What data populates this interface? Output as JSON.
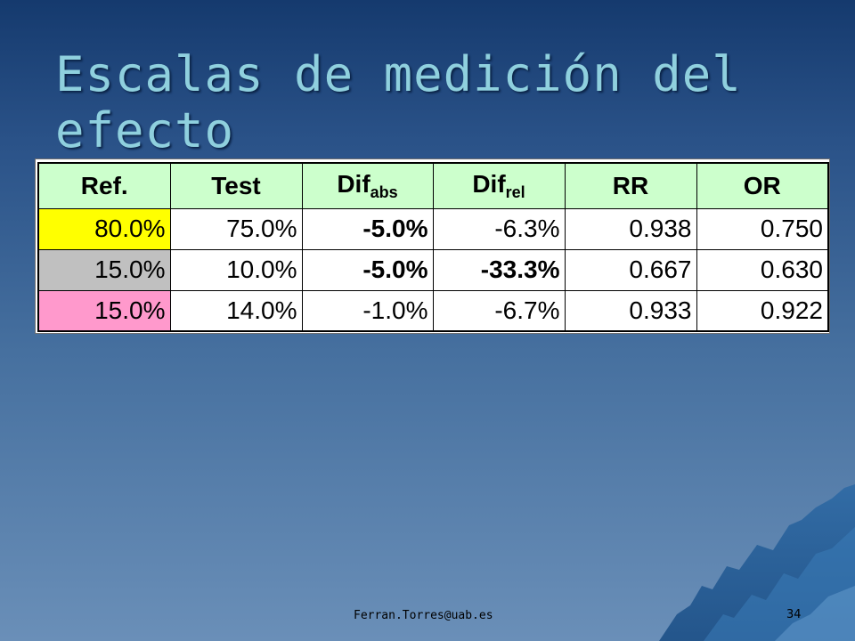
{
  "slide": {
    "title": "Escalas de medición del efecto",
    "footer_email": "Ferran.Torres@uab.es",
    "page_number": "34"
  },
  "table": {
    "headers": {
      "ref": "Ref.",
      "test": "Test",
      "dif_abs_main": "Dif",
      "dif_abs_sub": "abs",
      "dif_rel_main": "Dif",
      "dif_rel_sub": "rel",
      "rr": "RR",
      "or": "OR"
    },
    "rows": [
      {
        "ref": "80.0%",
        "test": "75.0%",
        "dif_abs": "-5.0%",
        "dif_rel": "-6.3%",
        "rr": "0.938",
        "or": "0.750"
      },
      {
        "ref": "15.0%",
        "test": "10.0%",
        "dif_abs": "-5.0%",
        "dif_rel": "-33.3%",
        "rr": "0.667",
        "or": "0.630"
      },
      {
        "ref": "15.0%",
        "test": "14.0%",
        "dif_abs": "-1.0%",
        "dif_rel": "-6.7%",
        "rr": "0.933",
        "or": "0.922"
      }
    ],
    "colors": {
      "header_bg": "#ccffcc",
      "row1_ref_bg": "#ffff00",
      "row2_ref_bg": "#c0c0c0",
      "row3_ref_bg": "#ff99cc"
    }
  }
}
